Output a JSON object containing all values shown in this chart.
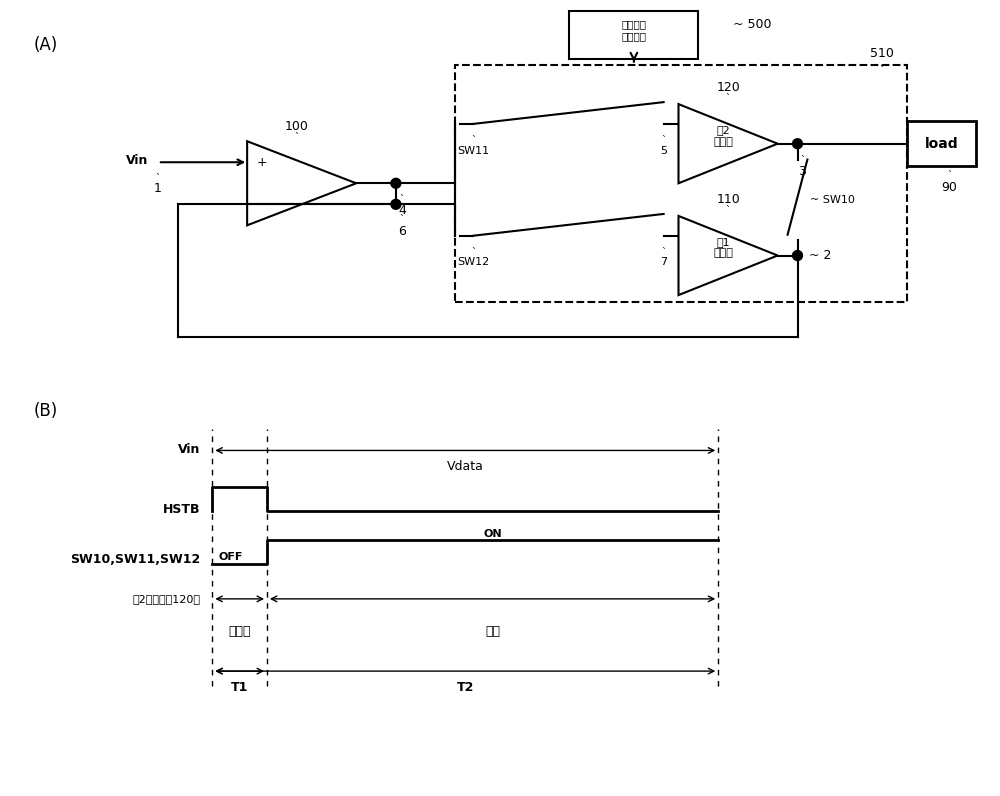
{
  "bg_color": "#ffffff",
  "fig_width": 10.0,
  "fig_height": 7.96,
  "label_A": "(A)",
  "label_B": "(B)",
  "ctrl_box_text": "控制信号\n产生电路",
  "ctrl_label": "~ 500",
  "label_510": "510",
  "label_100": "100",
  "label_4": "4",
  "label_6": "6",
  "label_1": "1",
  "label_Vin": "Vin",
  "label_120": "120",
  "label_110": "110",
  "label_3": "3",
  "label_2": "2",
  "label_SW11": "SW11",
  "label_SW12": "SW12",
  "label_SW10": "SW10",
  "label_5": "5",
  "label_7": "7",
  "label_90": "90",
  "label_load": "load",
  "amp2_text": "第2\n输出级",
  "amp1_text": "第1\n输出级",
  "timing_Vin": "Vin",
  "timing_Vdata": "Vdata",
  "timing_HSTB": "HSTB",
  "timing_SW": "SW10,SW11,SW12",
  "timing_OFF": "OFF",
  "timing_ON": "ON",
  "timing_2out": "第2输出级（120）",
  "timing_inactive": "非激活",
  "timing_active": "激活",
  "timing_T1": "T1",
  "timing_T2": "T2"
}
